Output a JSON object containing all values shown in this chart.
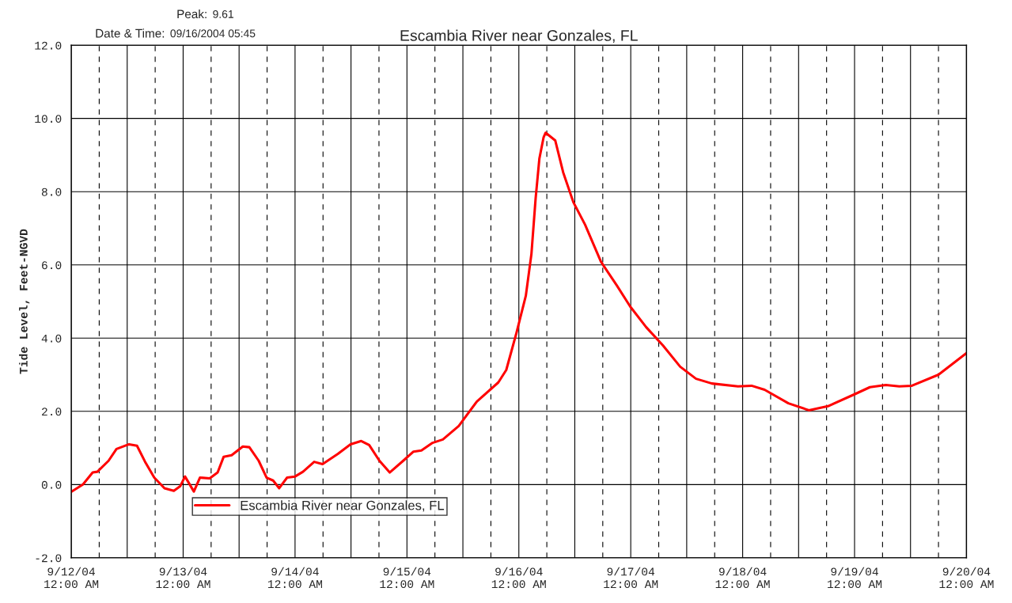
{
  "chart_data": {
    "type": "line",
    "title": "Escambia River near Gonzales, FL",
    "ylabel": "Tide Level, Feet-NGVD",
    "annotations": [
      "Peak:",
      "9.61",
      "Date & Time:",
      "09/16/2004 05:45"
    ],
    "x": [
      "2004-09-12T00:00",
      "2004-09-12T02:30",
      "2004-09-12T04:36",
      "2004-09-12T05:36",
      "2004-09-12T08:00",
      "2004-09-12T09:42",
      "2004-09-12T12:24",
      "2004-09-12T14:06",
      "2004-09-12T15:48",
      "2004-09-12T17:48",
      "2004-09-12T20:00",
      "2004-09-12T22:00",
      "2004-09-12T23:24",
      "2004-09-13T00:24",
      "2004-09-13T02:18",
      "2004-09-13T03:36",
      "2004-09-13T05:42",
      "2004-09-13T07:24",
      "2004-09-13T08:42",
      "2004-09-13T10:24",
      "2004-09-13T12:48",
      "2004-09-13T14:12",
      "2004-09-13T16:12",
      "2004-09-13T17:54",
      "2004-09-13T19:18",
      "2004-09-13T20:36",
      "2004-09-13T22:18",
      "2004-09-14T00:00",
      "2004-09-14T01:42",
      "2004-09-14T04:06",
      "2004-09-14T05:54",
      "2004-09-14T09:12",
      "2004-09-14T11:54",
      "2004-09-14T14:12",
      "2004-09-14T15:54",
      "2004-09-14T18:06",
      "2004-09-14T20:18",
      "2004-09-14T23:12",
      "2004-09-15T01:24",
      "2004-09-15T03:06",
      "2004-09-15T05:30",
      "2004-09-15T07:42",
      "2004-09-15T11:06",
      "2004-09-15T15:00",
      "2004-09-15T19:36",
      "2004-09-15T21:18",
      "2004-09-15T23:30",
      "2004-09-16T01:30",
      "2004-09-16T02:42",
      "2004-09-16T03:36",
      "2004-09-16T04:24",
      "2004-09-16T05:18",
      "2004-09-16T05:45",
      "2004-09-16T07:48",
      "2004-09-16T09:30",
      "2004-09-16T11:42",
      "2004-09-16T14:12",
      "2004-09-16T17:36",
      "2004-09-16T21:00",
      "2004-09-16T23:54",
      "2004-09-17T03:18",
      "2004-09-17T06:54",
      "2004-09-17T10:36",
      "2004-09-17T14:00",
      "2004-09-17T17:24",
      "2004-09-17T23:00",
      "2004-09-18T01:54",
      "2004-09-18T04:42",
      "2004-09-18T09:48",
      "2004-09-18T14:12",
      "2004-09-18T18:18",
      "2004-09-18T23:54",
      "2004-09-19T03:18",
      "2004-09-19T06:42",
      "2004-09-19T09:36",
      "2004-09-19T12:18",
      "2004-09-19T18:00",
      "2004-09-20T00:00"
    ],
    "series": [
      {
        "name": "Escambia River near Gonzales, FL",
        "color": "#ff0000",
        "values": [
          -0.2,
          0.0,
          0.33,
          0.35,
          0.65,
          0.97,
          1.1,
          1.06,
          0.63,
          0.19,
          -0.1,
          -0.17,
          -0.04,
          0.22,
          -0.19,
          0.19,
          0.17,
          0.33,
          0.76,
          0.8,
          1.04,
          1.02,
          0.65,
          0.19,
          0.11,
          -0.1,
          0.19,
          0.22,
          0.35,
          0.62,
          0.56,
          0.84,
          1.1,
          1.19,
          1.08,
          0.65,
          0.33,
          0.65,
          0.9,
          0.93,
          1.14,
          1.23,
          1.6,
          2.27,
          2.79,
          3.13,
          4.15,
          5.16,
          6.3,
          7.82,
          8.9,
          9.48,
          9.61,
          9.4,
          8.53,
          7.71,
          7.1,
          6.09,
          5.44,
          4.86,
          4.3,
          3.8,
          3.22,
          2.89,
          2.76,
          2.68,
          2.7,
          2.59,
          2.22,
          2.03,
          2.14,
          2.46,
          2.66,
          2.72,
          2.68,
          2.7,
          3.0,
          3.59
        ]
      }
    ],
    "xlim": [
      "2004-09-12T00:00",
      "2004-09-20T00:00"
    ],
    "xticks": [
      {
        "value": "2004-09-12T00:00",
        "label": "9/12/04\n12:00 AM"
      },
      {
        "value": "2004-09-12T12:00",
        "label": null
      },
      {
        "value": "2004-09-13T00:00",
        "label": "9/13/04\n12:00 AM"
      },
      {
        "value": "2004-09-13T12:00",
        "label": null
      },
      {
        "value": "2004-09-14T00:00",
        "label": "9/14/04\n12:00 AM"
      },
      {
        "value": "2004-09-14T12:00",
        "label": null
      },
      {
        "value": "2004-09-15T00:00",
        "label": "9/15/04\n12:00 AM"
      },
      {
        "value": "2004-09-15T12:00",
        "label": null
      },
      {
        "value": "2004-09-16T00:00",
        "label": "9/16/04\n12:00 AM"
      },
      {
        "value": "2004-09-16T12:00",
        "label": null
      },
      {
        "value": "2004-09-17T00:00",
        "label": "9/17/04\n12:00 AM"
      },
      {
        "value": "2004-09-17T12:00",
        "label": null
      },
      {
        "value": "2004-09-18T00:00",
        "label": "9/18/04\n12:00 AM"
      },
      {
        "value": "2004-09-18T12:00",
        "label": null
      },
      {
        "value": "2004-09-19T00:00",
        "label": "9/19/04\n12:00 AM"
      },
      {
        "value": "2004-09-19T12:00",
        "label": null
      },
      {
        "value": "2004-09-20T00:00",
        "label": "9/20/04\n12:00 AM"
      }
    ],
    "ylim": [
      -2,
      12
    ],
    "yticks": [
      {
        "value": -2,
        "label": "-2.0"
      },
      {
        "value": 0,
        "label": "0.0"
      },
      {
        "value": 2,
        "label": "2.0"
      },
      {
        "value": 4,
        "label": "4.0"
      },
      {
        "value": 6,
        "label": "6.0"
      },
      {
        "value": 8,
        "label": "8.0"
      },
      {
        "value": 10,
        "label": "10.0"
      },
      {
        "value": 12,
        "label": "12.0"
      }
    ],
    "grid": true,
    "legend": "bottom left",
    "marker": "none",
    "line_style": "solid"
  }
}
